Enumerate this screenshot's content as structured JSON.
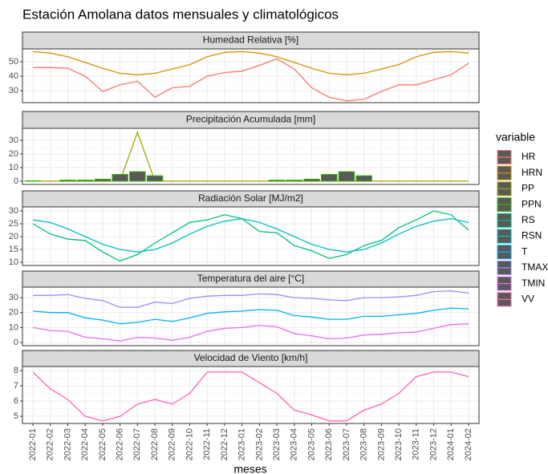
{
  "chart_data": {
    "type": "line",
    "title": "Estación Amolana datos mensuales y climatológicos",
    "x_label": "meses",
    "legend_title": "variable",
    "categories": [
      "2022-01",
      "2022-02",
      "2022-03",
      "2022-04",
      "2022-05",
      "2022-06",
      "2022-07",
      "2022-08",
      "2022-09",
      "2022-10",
      "2022-11",
      "2022-12",
      "2023-01",
      "2023-02",
      "2023-03",
      "2023-04",
      "2023-05",
      "2023-06",
      "2023-07",
      "2023-08",
      "2023-09",
      "2023-10",
      "2023-11",
      "2023-12",
      "2024-01",
      "2024-02"
    ],
    "grid": true,
    "panels": [
      {
        "title": "Humedad Relativa [%]",
        "ylim": [
          21.7,
          58.9
        ],
        "yticks": [
          30,
          40,
          50
        ],
        "series": [
          {
            "name": "HR",
            "type": "line",
            "color": "#F8766D",
            "values": [
              46,
              46,
              45.5,
              40,
              29.5,
              34,
              36.5,
              25.5,
              32,
              33,
              40,
              42.5,
              43.5,
              47.5,
              52,
              45,
              32,
              25.5,
              23,
              24,
              29.5,
              34,
              34,
              37.5,
              41,
              49
            ]
          },
          {
            "name": "HRN",
            "type": "line",
            "color": "#D89000",
            "values": [
              57,
              56,
              53.5,
              49.5,
              45.5,
              42,
              41,
              42,
              45,
              48,
              53.5,
              56.5,
              57,
              56,
              53.5,
              49.5,
              45.5,
              42,
              41,
              42,
              45,
              48,
              53.5,
              56.5,
              57,
              56
            ]
          }
        ]
      },
      {
        "title": "Precipitación Acumulada [mm]",
        "ylim": [
          -2.4,
          38.8
        ],
        "yticks": [
          0,
          10,
          20,
          30
        ],
        "series": [
          {
            "name": "PP",
            "type": "line",
            "color": "#A3A500",
            "values": [
              0,
              0,
              0,
              0,
              0,
              0,
              36,
              0,
              0,
              0,
              0,
              0,
              0,
              0,
              0,
              0,
              0,
              0,
              0,
              0,
              0,
              0,
              0,
              0,
              0,
              0
            ]
          },
          {
            "name": "PPN",
            "type": "bar",
            "color": "#39B600",
            "values": [
              0.3,
              0,
              0.8,
              0.8,
              1.5,
              5,
              7,
              4,
              0,
              0,
              0,
              0,
              0,
              0,
              0.8,
              0.8,
              1.5,
              5,
              7,
              4,
              0,
              0,
              0,
              0,
              0,
              0
            ]
          }
        ]
      },
      {
        "title": "Radiación Solar [MJ/m2]",
        "ylim": [
          8.75,
          31.56
        ],
        "yticks": [
          10,
          15,
          20,
          25,
          30
        ],
        "series": [
          {
            "name": "RS",
            "type": "line",
            "color": "#00BF7D",
            "values": [
              25,
              21,
              19,
              18.5,
              14,
              10.5,
              13,
              17.5,
              21.5,
              25.5,
              26.5,
              28.5,
              27,
              22,
              21.5,
              16.5,
              14.5,
              11.5,
              13,
              16.5,
              18.5,
              23.5,
              26.5,
              30,
              28.5,
              22.5
            ]
          },
          {
            "name": "RSN",
            "type": "line",
            "color": "#00BFC4",
            "values": [
              26.5,
              25.5,
              23,
              20,
              17,
              15,
              14,
              15,
              17.5,
              21,
              24,
              26,
              27,
              25.5,
              23,
              20,
              17,
              15,
              14,
              15,
              17.5,
              21,
              24,
              26,
              27,
              25.5
            ]
          }
        ]
      },
      {
        "title": "Temperatura del aire [°C]",
        "ylim": [
          -2.1,
          37
        ],
        "yticks": [
          0,
          10,
          20,
          30
        ],
        "series": [
          {
            "name": "T",
            "type": "line",
            "color": "#00B0F6",
            "values": [
              21,
              20,
              20,
              16.5,
              15,
              12.5,
              13.5,
              15.5,
              14,
              16.5,
              19.5,
              20.5,
              21,
              22,
              21.5,
              18,
              17,
              15.5,
              15.5,
              17.5,
              17.5,
              18.5,
              19.5,
              21.5,
              23,
              22.5
            ]
          },
          {
            "name": "TMAX",
            "type": "line",
            "color": "#9590FF",
            "values": [
              31.5,
              31.5,
              32,
              29.5,
              28,
              23.5,
              23.5,
              27,
              26,
              29.5,
              31,
              31.5,
              31.5,
              32.5,
              32,
              30,
              29.5,
              28.5,
              28,
              30,
              30,
              30.5,
              31.5,
              34,
              34.5,
              33
            ]
          },
          {
            "name": "TMIN",
            "type": "line",
            "color": "#E76BF3",
            "values": [
              10,
              8,
              7.5,
              3.5,
              2.5,
              1,
              3.5,
              3,
              1.5,
              3.5,
              7.5,
              9.5,
              10,
              11.5,
              10.5,
              6,
              4.5,
              2.5,
              3,
              5,
              5.5,
              6.5,
              7,
              9.5,
              12,
              12.5
            ]
          }
        ]
      },
      {
        "title": "Velocidad de Viento [km/h]",
        "ylim": [
          4.53,
          8.26
        ],
        "yticks": [
          5,
          6,
          7,
          8
        ],
        "series": [
          {
            "name": "VV",
            "type": "line",
            "color": "#FF62BC",
            "values": [
              7.9,
              6.8,
              6.1,
              5.0,
              4.7,
              5.0,
              5.8,
              6.1,
              5.8,
              6.5,
              7.9,
              7.9,
              7.9,
              7.2,
              6.5,
              5.4,
              5.1,
              4.7,
              4.7,
              5.4,
              5.8,
              6.5,
              7.6,
              7.9,
              7.9,
              7.6
            ]
          }
        ]
      }
    ]
  }
}
